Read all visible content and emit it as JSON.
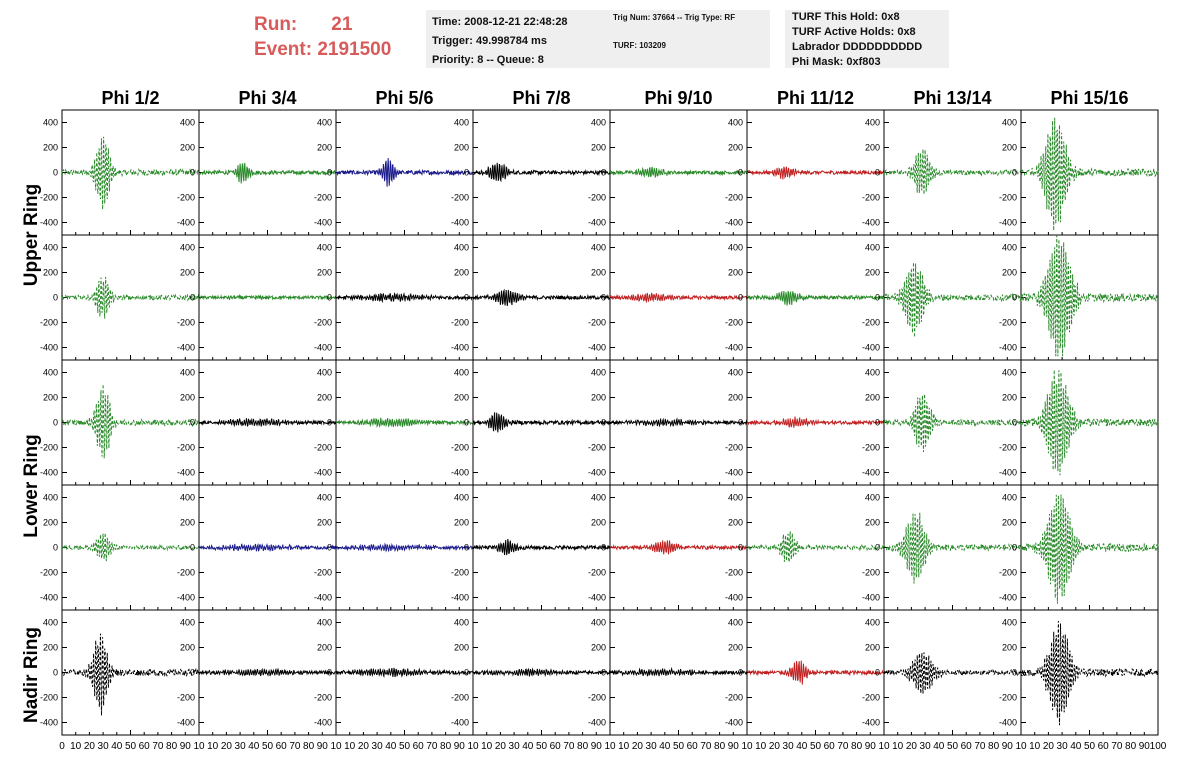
{
  "header": {
    "run_label": "Run:",
    "run_value": "21",
    "event_label": "Event: 2191500"
  },
  "info_time": {
    "time": "Time: 2008-12-21 22:48:28",
    "trigger": "Trigger: 49.998784 ms",
    "priority": "Priority: 8 -- Queue: 8"
  },
  "info_trig": {
    "trig": "Trig Num: 37664 -- Trig Type: RF",
    "turf": "TURF: 103209"
  },
  "info_turf": {
    "this_hold": "TURF This Hold: 0x8",
    "active_holds": "TURF Active Holds: 0x8",
    "labrador": "Labrador DDDDDDDDDD",
    "phi_mask": "Phi Mask: 0xf803"
  },
  "chart_data": {
    "type": "line",
    "columns": [
      "Phi 1/2",
      "Phi 3/4",
      "Phi 5/6",
      "Phi 7/8",
      "Phi 9/10",
      "Phi 11/12",
      "Phi 13/14",
      "Phi 15/16"
    ],
    "rows": [
      "Upper Ring",
      "Lower Ring",
      "Nadir Ring"
    ],
    "ylim": [
      -500,
      500
    ],
    "yticks": [
      -400,
      -200,
      0,
      200,
      400
    ],
    "xlim": [
      0,
      100
    ],
    "xticks_first": [
      "0",
      "10",
      "20",
      "30",
      "40",
      "50",
      "60",
      "70",
      "80",
      "90",
      "10"
    ],
    "xticks_mid": [
      "10",
      "20",
      "30",
      "40",
      "50",
      "60",
      "70",
      "80",
      "90",
      "10"
    ],
    "xticks_last": [
      "10",
      "20",
      "30",
      "40",
      "50",
      "60",
      "70",
      "80",
      "90",
      "100"
    ],
    "colors": {
      "green": "#2a8a2a",
      "blue": "#1a1a8c",
      "black": "#000000",
      "red": "#c02020"
    },
    "panels": [
      [
        {
          "color": "green",
          "dashed": true,
          "amp": 300,
          "center": 30,
          "width": 6
        },
        {
          "color": "green",
          "dashed": false,
          "amp": 90,
          "center": 32,
          "width": 5
        },
        {
          "color": "blue",
          "dashed": false,
          "amp": 110,
          "center": 38,
          "width": 5
        },
        {
          "color": "black",
          "dashed": false,
          "amp": 75,
          "center": 18,
          "width": 8
        },
        {
          "color": "green",
          "dashed": false,
          "amp": 35,
          "center": 30,
          "width": 10
        },
        {
          "color": "red",
          "dashed": false,
          "amp": 45,
          "center": 28,
          "width": 8
        },
        {
          "color": "green",
          "dashed": true,
          "amp": 200,
          "center": 28,
          "width": 7
        },
        {
          "color": "green",
          "dashed": true,
          "amp": 450,
          "center": 25,
          "width": 9
        }
      ],
      [
        {
          "color": "green",
          "dashed": true,
          "amp": 170,
          "center": 30,
          "width": 6
        },
        {
          "color": "green",
          "dashed": false,
          "amp": 5,
          "center": 40,
          "width": 30
        },
        {
          "color": "black",
          "dashed": false,
          "amp": 25,
          "center": 40,
          "width": 25
        },
        {
          "color": "black",
          "dashed": false,
          "amp": 60,
          "center": 25,
          "width": 10
        },
        {
          "color": "red",
          "dashed": false,
          "amp": 28,
          "center": 30,
          "width": 15
        },
        {
          "color": "green",
          "dashed": false,
          "amp": 60,
          "center": 30,
          "width": 8
        },
        {
          "color": "green",
          "dashed": true,
          "amp": 300,
          "center": 22,
          "width": 8
        },
        {
          "color": "green",
          "dashed": true,
          "amp": 500,
          "center": 28,
          "width": 10
        }
      ],
      [
        {
          "color": "green",
          "dashed": true,
          "amp": 300,
          "center": 30,
          "width": 6
        },
        {
          "color": "black",
          "dashed": false,
          "amp": 25,
          "center": 40,
          "width": 25
        },
        {
          "color": "green",
          "dashed": false,
          "amp": 30,
          "center": 40,
          "width": 20
        },
        {
          "color": "black",
          "dashed": false,
          "amp": 80,
          "center": 18,
          "width": 7
        },
        {
          "color": "black",
          "dashed": false,
          "amp": 20,
          "center": 40,
          "width": 25
        },
        {
          "color": "red",
          "dashed": false,
          "amp": 35,
          "center": 35,
          "width": 12
        },
        {
          "color": "green",
          "dashed": true,
          "amp": 230,
          "center": 28,
          "width": 7
        },
        {
          "color": "green",
          "dashed": true,
          "amp": 450,
          "center": 27,
          "width": 9
        }
      ],
      [
        {
          "color": "green",
          "dashed": true,
          "amp": 110,
          "center": 30,
          "width": 6
        },
        {
          "color": "blue",
          "dashed": false,
          "amp": 20,
          "center": 40,
          "width": 30
        },
        {
          "color": "blue",
          "dashed": false,
          "amp": 20,
          "center": 40,
          "width": 30
        },
        {
          "color": "black",
          "dashed": false,
          "amp": 60,
          "center": 25,
          "width": 7
        },
        {
          "color": "red",
          "dashed": false,
          "amp": 50,
          "center": 40,
          "width": 10
        },
        {
          "color": "green",
          "dashed": true,
          "amp": 130,
          "center": 30,
          "width": 6
        },
        {
          "color": "green",
          "dashed": true,
          "amp": 300,
          "center": 23,
          "width": 8
        },
        {
          "color": "green",
          "dashed": true,
          "amp": 450,
          "center": 28,
          "width": 10
        }
      ],
      [
        {
          "color": "black",
          "dashed": true,
          "amp": 330,
          "center": 28,
          "width": 6
        },
        {
          "color": "black",
          "dashed": false,
          "amp": 20,
          "center": 40,
          "width": 30
        },
        {
          "color": "black",
          "dashed": false,
          "amp": 25,
          "center": 40,
          "width": 30
        },
        {
          "color": "black",
          "dashed": false,
          "amp": 20,
          "center": 40,
          "width": 30
        },
        {
          "color": "black",
          "dashed": false,
          "amp": 20,
          "center": 40,
          "width": 30
        },
        {
          "color": "red",
          "dashed": false,
          "amp": 100,
          "center": 38,
          "width": 6
        },
        {
          "color": "black",
          "dashed": true,
          "amp": 180,
          "center": 28,
          "width": 9
        },
        {
          "color": "black",
          "dashed": true,
          "amp": 400,
          "center": 28,
          "width": 9
        }
      ]
    ]
  }
}
